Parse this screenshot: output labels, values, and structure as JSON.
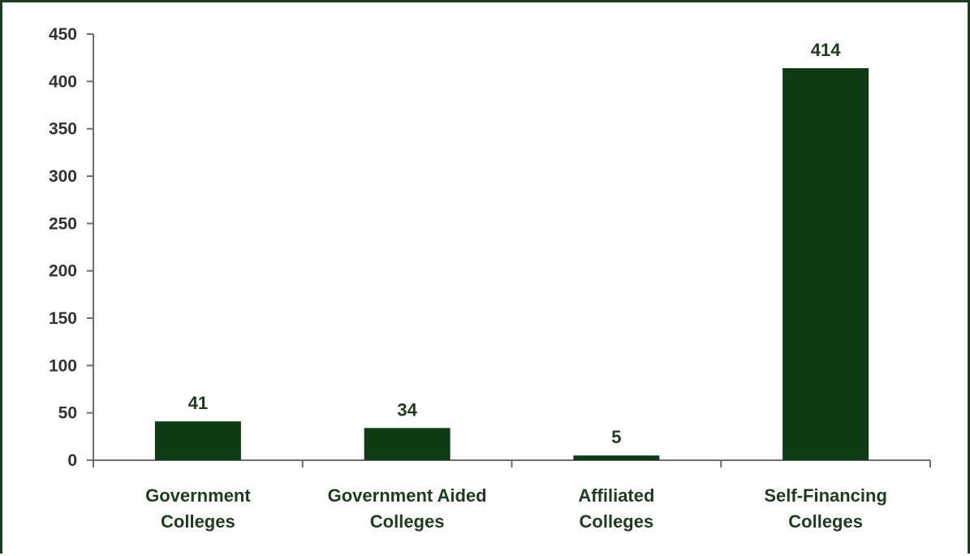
{
  "chart_data": {
    "type": "bar",
    "categories": [
      [
        "Government",
        "Colleges"
      ],
      [
        "Government Aided",
        "Colleges"
      ],
      [
        "Affiliated",
        "Colleges"
      ],
      [
        "Self-Financing",
        "Colleges"
      ]
    ],
    "values": [
      41,
      34,
      5,
      414
    ],
    "data_labels": [
      "41",
      "34",
      "5",
      "414"
    ],
    "ylim": [
      0,
      450
    ],
    "yticks": [
      0,
      50,
      100,
      150,
      200,
      250,
      300,
      350,
      400,
      450
    ],
    "title": "",
    "xlabel": "",
    "ylabel": "",
    "grid": false,
    "legend": "none",
    "colors": {
      "bar": "#0e3a14",
      "axis": "#6e6e6e",
      "frame": "#1e3c1e",
      "tick_text": "#333333",
      "label_text": "#1e3c1e"
    }
  }
}
